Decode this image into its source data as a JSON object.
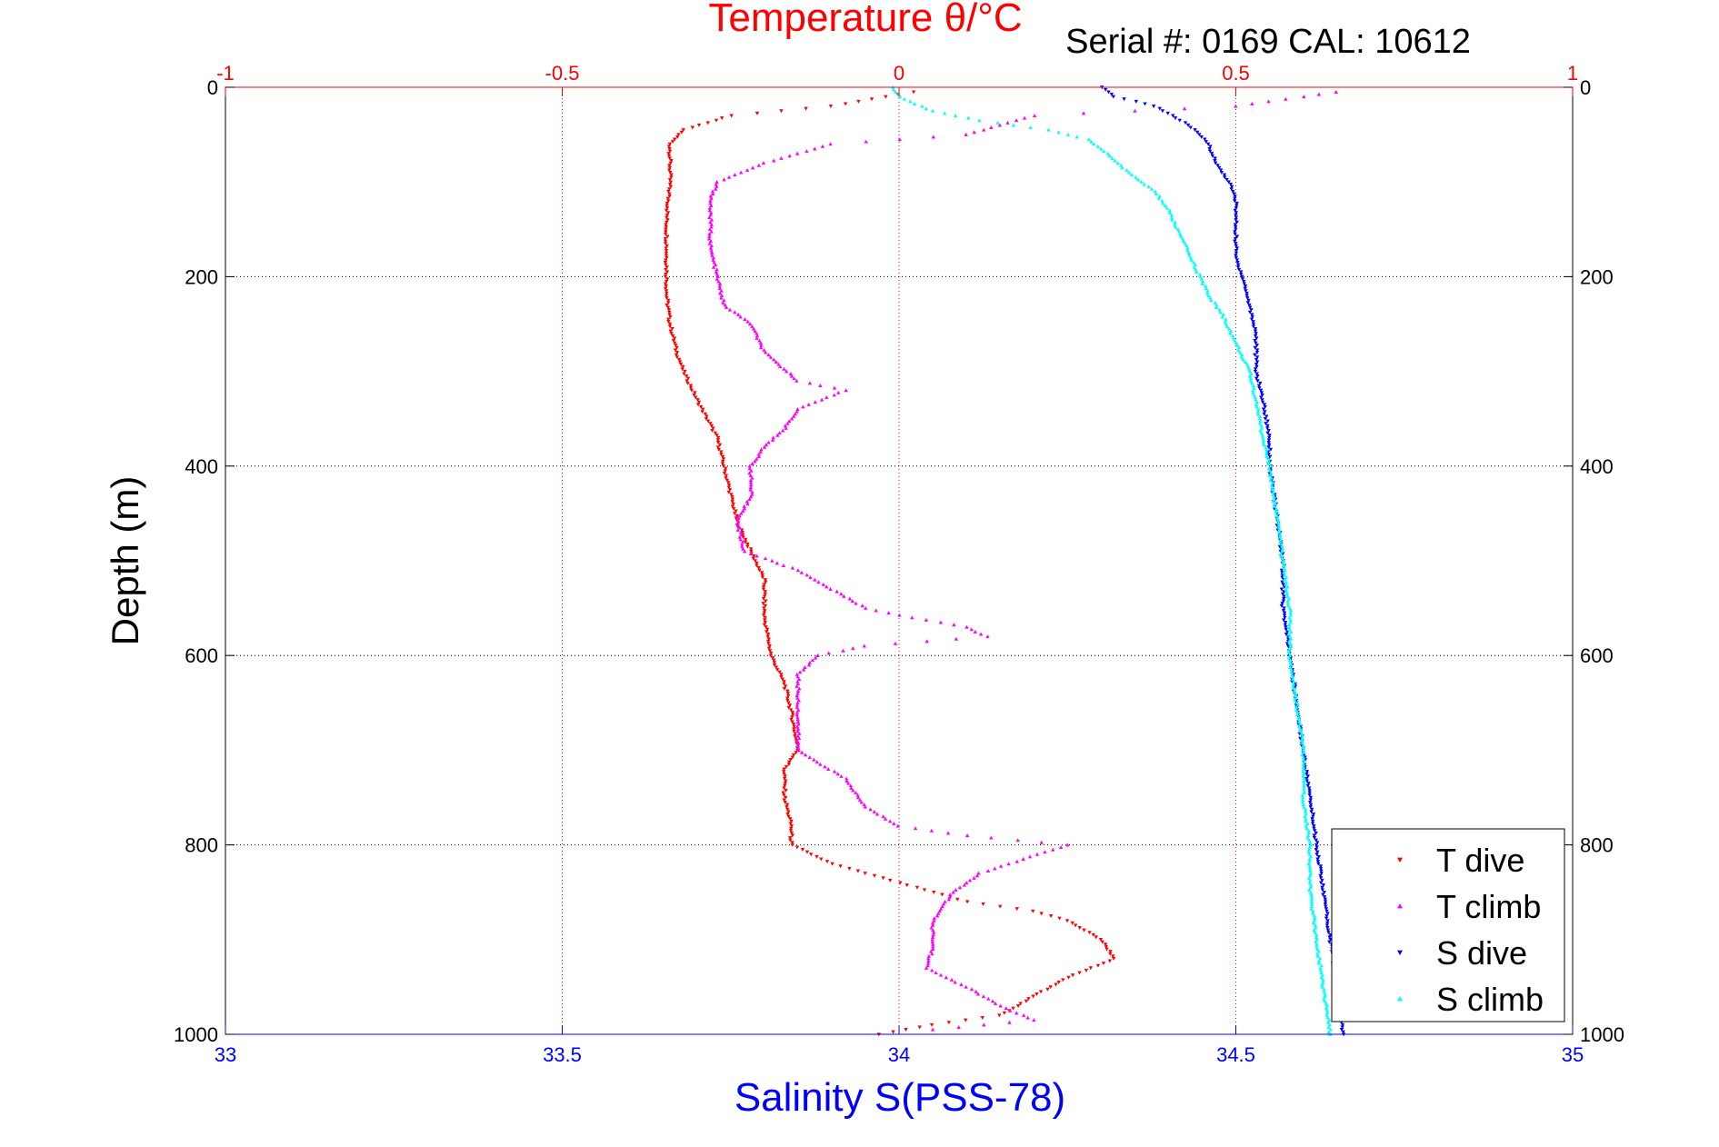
{
  "chart_data": {
    "type": "scatter",
    "title": "Temperature θ/°C",
    "subtitle": "Serial #: 0169 CAL: 10612",
    "ylabel": "Depth (m)",
    "xlabel": "Salinity S(PSS-78)",
    "x_top": {
      "label": "Temperature θ/°C",
      "lim": [
        -1,
        1
      ],
      "ticks": [
        -1,
        -0.5,
        0,
        0.5,
        1
      ],
      "tick_labels": [
        "-1",
        "-0.5",
        "0",
        "0.5",
        "1"
      ],
      "color": "#ff0000"
    },
    "x_bottom": {
      "label": "Salinity S(PSS-78)",
      "lim": [
        33,
        35
      ],
      "ticks": [
        33,
        33.5,
        34,
        34.5,
        35
      ],
      "tick_labels": [
        "33",
        "33.5",
        "34",
        "34.5",
        "35"
      ],
      "color": "#0000ff"
    },
    "y": {
      "lim": [
        0,
        1000
      ],
      "reversed": true,
      "ticks": [
        0,
        200,
        400,
        600,
        800,
        1000
      ],
      "tick_labels": [
        "0",
        "200",
        "400",
        "600",
        "800",
        "1000"
      ]
    },
    "grid": true,
    "legend_position": "bottom-right",
    "series": [
      {
        "name": "T dive",
        "axis": "temperature",
        "color": "#ff0000",
        "marker": "triangle-down",
        "points": [
          [
            0.02,
            5
          ],
          [
            -0.1,
            20
          ],
          [
            -0.25,
            30
          ],
          [
            -0.32,
            45
          ],
          [
            -0.34,
            60
          ],
          [
            -0.34,
            80
          ],
          [
            -0.34,
            100
          ],
          [
            -0.345,
            140
          ],
          [
            -0.345,
            180
          ],
          [
            -0.345,
            220
          ],
          [
            -0.34,
            250
          ],
          [
            -0.33,
            280
          ],
          [
            -0.32,
            300
          ],
          [
            -0.3,
            330
          ],
          [
            -0.27,
            370
          ],
          [
            -0.26,
            400
          ],
          [
            -0.25,
            430
          ],
          [
            -0.24,
            460
          ],
          [
            -0.22,
            490
          ],
          [
            -0.2,
            520
          ],
          [
            -0.2,
            560
          ],
          [
            -0.19,
            600
          ],
          [
            -0.17,
            630
          ],
          [
            -0.16,
            660
          ],
          [
            -0.15,
            700
          ],
          [
            -0.17,
            720
          ],
          [
            -0.17,
            750
          ],
          [
            -0.16,
            780
          ],
          [
            -0.16,
            800
          ],
          [
            -0.1,
            820
          ],
          [
            0.0,
            840
          ],
          [
            0.1,
            860
          ],
          [
            0.2,
            870
          ],
          [
            0.25,
            880
          ],
          [
            0.3,
            900
          ],
          [
            0.32,
            920
          ],
          [
            0.25,
            940
          ],
          [
            0.2,
            960
          ],
          [
            0.15,
            980
          ],
          [
            0.05,
            990
          ],
          [
            -0.03,
            1000
          ]
        ]
      },
      {
        "name": "T climb",
        "axis": "temperature",
        "color": "#ff00ff",
        "marker": "triangle-up",
        "points": [
          [
            0.65,
            5
          ],
          [
            0.5,
            20
          ],
          [
            0.2,
            30
          ],
          [
            0.1,
            50
          ],
          [
            -0.1,
            60
          ],
          [
            -0.2,
            80
          ],
          [
            -0.27,
            100
          ],
          [
            -0.28,
            120
          ],
          [
            -0.28,
            140
          ],
          [
            -0.28,
            170
          ],
          [
            -0.27,
            200
          ],
          [
            -0.26,
            230
          ],
          [
            -0.22,
            250
          ],
          [
            -0.2,
            280
          ],
          [
            -0.15,
            310
          ],
          [
            -0.08,
            320
          ],
          [
            -0.15,
            340
          ],
          [
            -0.17,
            360
          ],
          [
            -0.2,
            380
          ],
          [
            -0.22,
            400
          ],
          [
            -0.22,
            430
          ],
          [
            -0.24,
            460
          ],
          [
            -0.23,
            490
          ],
          [
            -0.15,
            510
          ],
          [
            -0.1,
            530
          ],
          [
            -0.05,
            550
          ],
          [
            0.02,
            560
          ],
          [
            0.1,
            570
          ],
          [
            0.13,
            580
          ],
          [
            -0.05,
            590
          ],
          [
            -0.12,
            600
          ],
          [
            -0.15,
            620
          ],
          [
            -0.15,
            650
          ],
          [
            -0.15,
            680
          ],
          [
            -0.15,
            700
          ],
          [
            -0.08,
            730
          ],
          [
            -0.05,
            760
          ],
          [
            0.0,
            780
          ],
          [
            0.1,
            790
          ],
          [
            0.25,
            800
          ],
          [
            0.12,
            830
          ],
          [
            0.08,
            850
          ],
          [
            0.05,
            880
          ],
          [
            0.05,
            910
          ],
          [
            0.04,
            930
          ],
          [
            0.1,
            950
          ],
          [
            0.15,
            970
          ],
          [
            0.2,
            985
          ],
          [
            0.05,
            995
          ]
        ]
      },
      {
        "name": "S dive",
        "axis": "salinity",
        "color": "#0000ff",
        "marker": "triangle-down",
        "points": [
          [
            34.3,
            0
          ],
          [
            34.32,
            10
          ],
          [
            34.38,
            20
          ],
          [
            34.43,
            40
          ],
          [
            34.46,
            60
          ],
          [
            34.47,
            80
          ],
          [
            34.49,
            100
          ],
          [
            34.5,
            120
          ],
          [
            34.5,
            150
          ],
          [
            34.5,
            180
          ],
          [
            34.51,
            200
          ],
          [
            34.52,
            230
          ],
          [
            34.53,
            260
          ],
          [
            34.53,
            300
          ],
          [
            34.54,
            330
          ],
          [
            34.55,
            370
          ],
          [
            34.55,
            400
          ],
          [
            34.56,
            450
          ],
          [
            34.57,
            500
          ],
          [
            34.57,
            550
          ],
          [
            34.58,
            600
          ],
          [
            34.59,
            650
          ],
          [
            34.6,
            700
          ],
          [
            34.61,
            750
          ],
          [
            34.62,
            800
          ],
          [
            34.63,
            850
          ],
          [
            34.64,
            900
          ],
          [
            34.65,
            950
          ],
          [
            34.66,
            1000
          ]
        ]
      },
      {
        "name": "S climb",
        "axis": "salinity",
        "color": "#00ffff",
        "marker": "triangle-up",
        "points": [
          [
            33.99,
            0
          ],
          [
            34.0,
            10
          ],
          [
            34.05,
            25
          ],
          [
            34.12,
            35
          ],
          [
            34.22,
            45
          ],
          [
            34.28,
            55
          ],
          [
            34.31,
            70
          ],
          [
            34.34,
            90
          ],
          [
            34.38,
            110
          ],
          [
            34.4,
            130
          ],
          [
            34.42,
            160
          ],
          [
            34.44,
            190
          ],
          [
            34.46,
            220
          ],
          [
            34.48,
            240
          ],
          [
            34.5,
            270
          ],
          [
            34.52,
            300
          ],
          [
            34.53,
            330
          ],
          [
            34.54,
            370
          ],
          [
            34.55,
            400
          ],
          [
            34.56,
            450
          ],
          [
            34.57,
            500
          ],
          [
            34.58,
            550
          ],
          [
            34.58,
            600
          ],
          [
            34.59,
            650
          ],
          [
            34.6,
            700
          ],
          [
            34.6,
            750
          ],
          [
            34.61,
            800
          ],
          [
            34.61,
            850
          ],
          [
            34.62,
            900
          ],
          [
            34.63,
            950
          ],
          [
            34.64,
            1000
          ]
        ]
      }
    ]
  }
}
